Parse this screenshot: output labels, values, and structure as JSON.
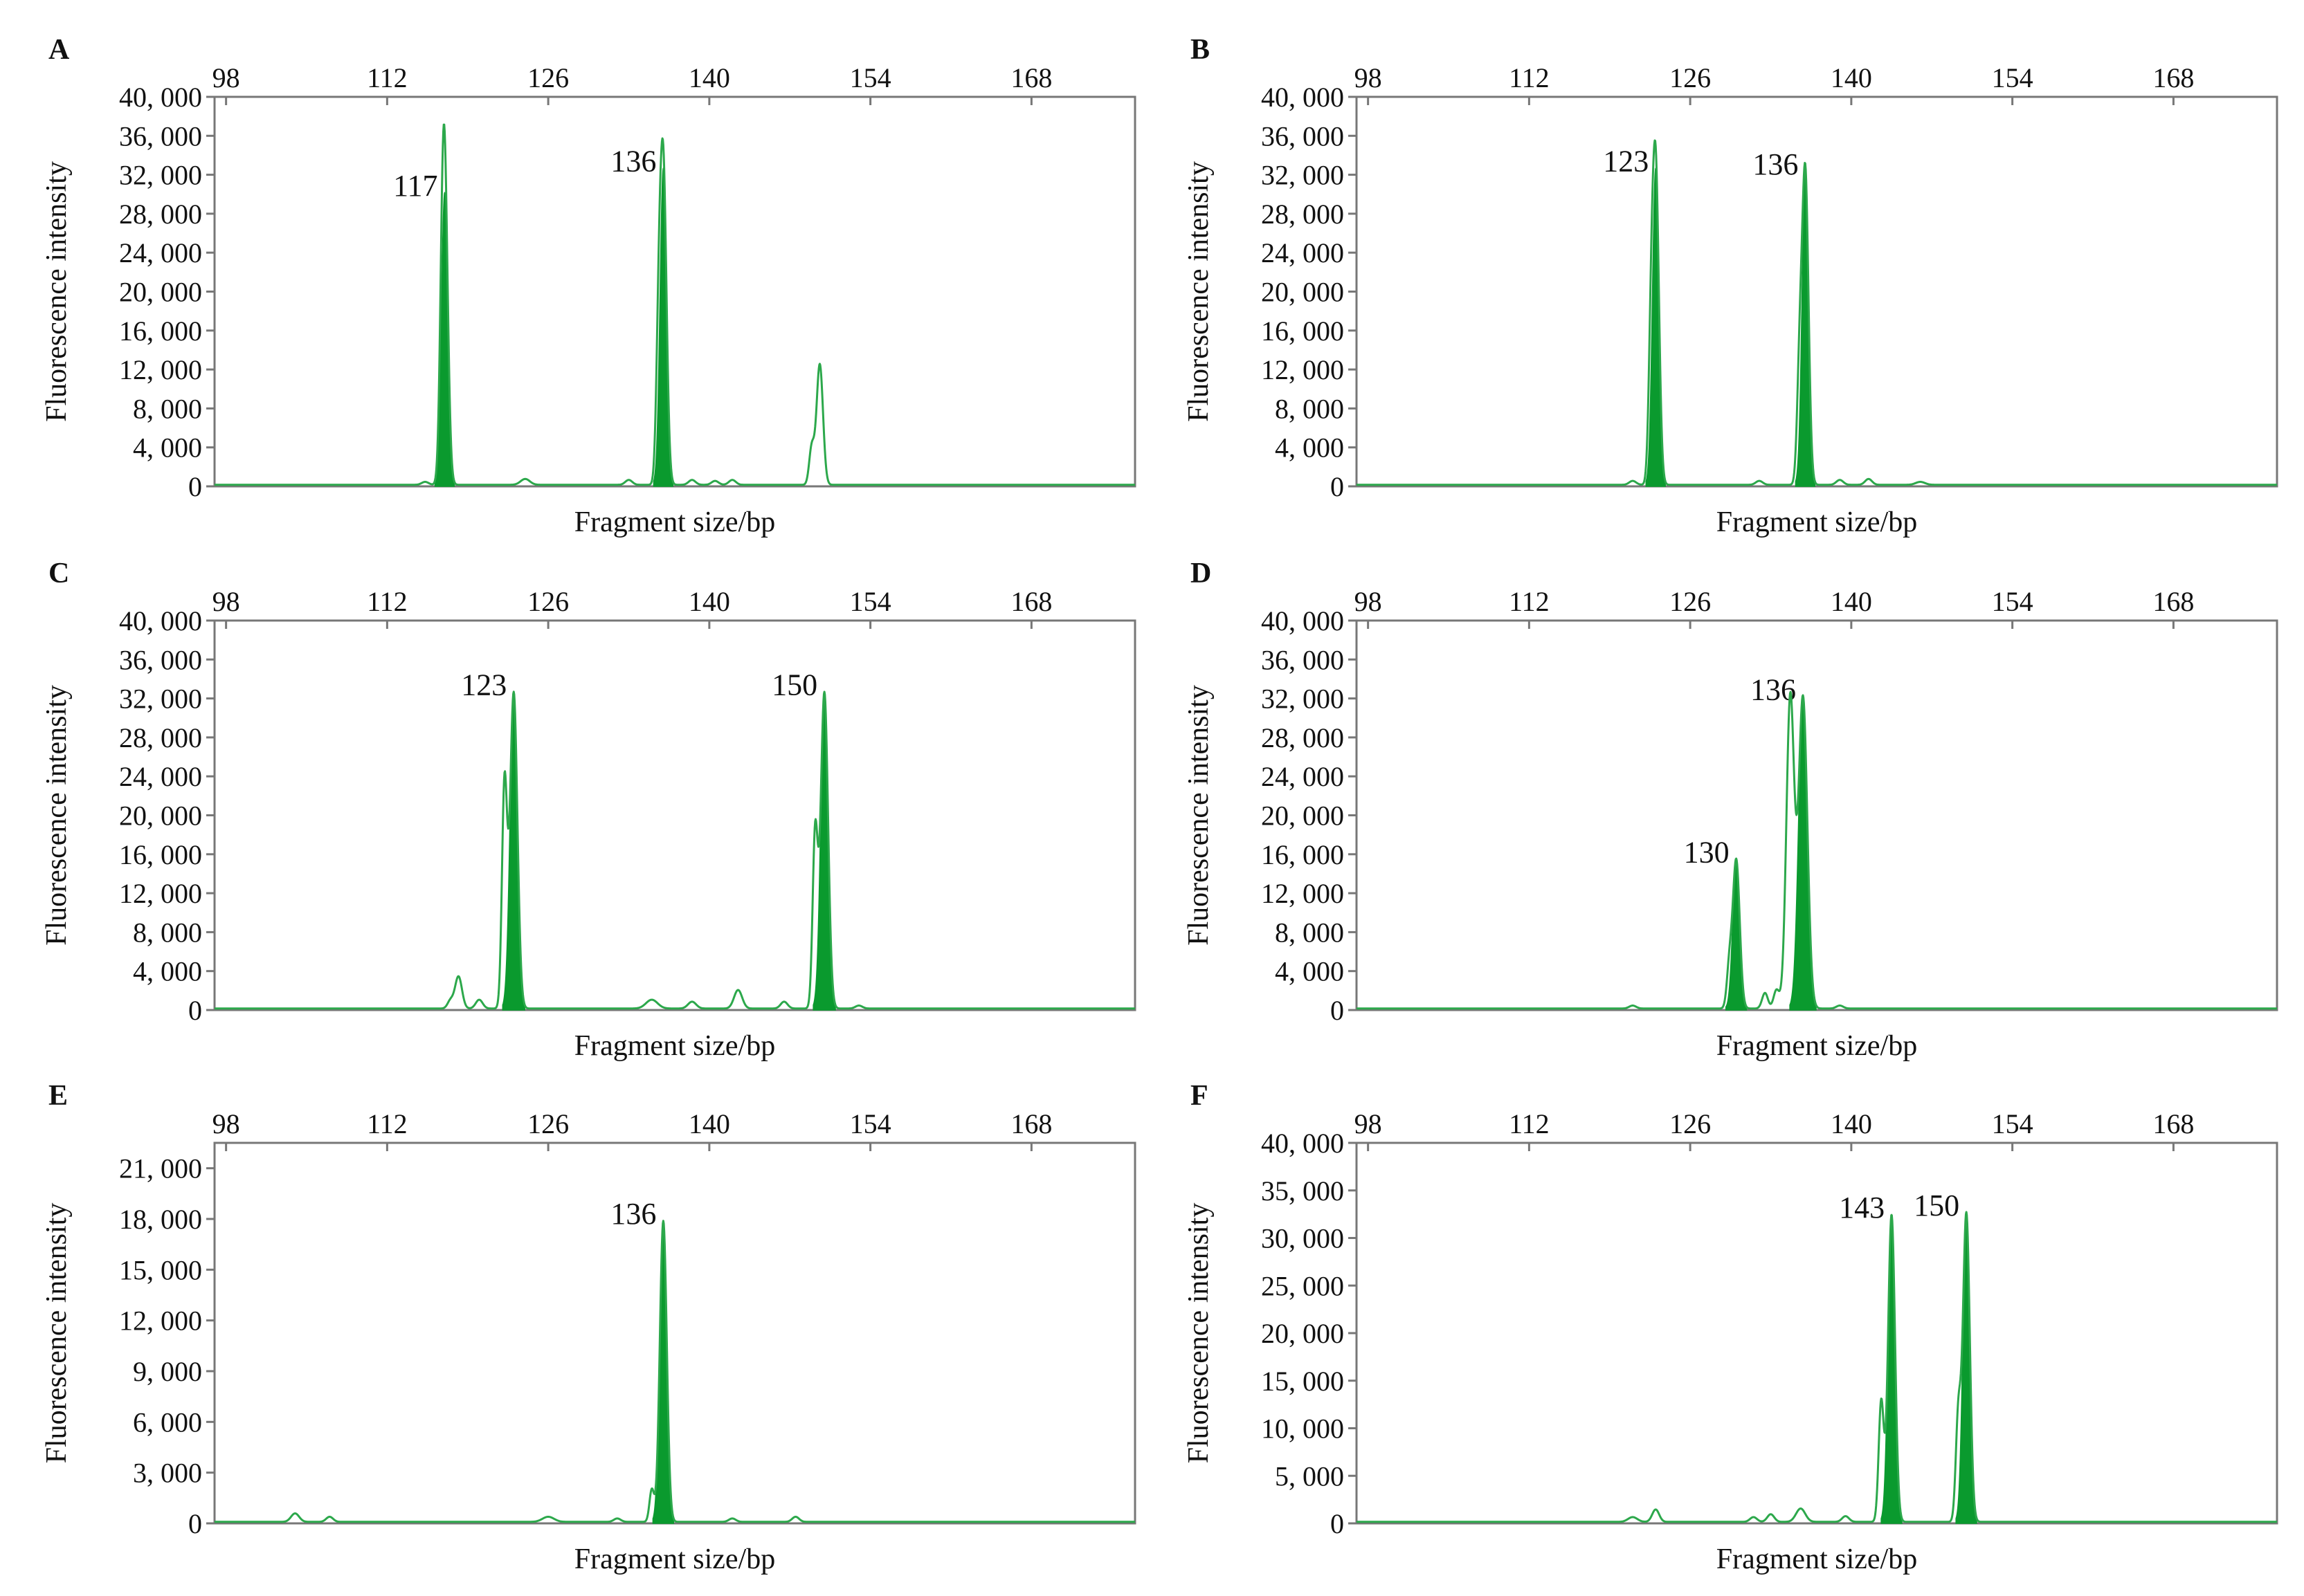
{
  "figure": {
    "xlabel": "Fragment size/bp",
    "ylabel": "Fluorescence intensity",
    "colors": {
      "trace": "#2ca84b",
      "fill": "#0a9a2e",
      "frame": "#777777",
      "text": "#111111"
    }
  },
  "chart_data": [
    {
      "panel": "A",
      "type": "line",
      "xlabel": "Fragment size/bp",
      "ylabel": "Fluorescence intensity",
      "x_ticks": [
        98,
        112,
        126,
        140,
        154,
        168
      ],
      "xlim": [
        97,
        177
      ],
      "y_ticks": [
        0,
        4000,
        8000,
        12000,
        16000,
        20000,
        24000,
        28000,
        32000,
        36000,
        40000
      ],
      "y_tick_labels": [
        "0",
        "4, 000",
        "8, 000",
        "12, 000",
        "16, 000",
        "20, 000",
        "24, 000",
        "28, 000",
        "32, 000",
        "36, 000",
        "40, 000"
      ],
      "ylim": [
        0,
        40000
      ],
      "peaks": [
        {
          "x": 116.8,
          "y": 9500,
          "w": 0.22,
          "filled": false
        },
        {
          "x": 117.0,
          "y": 30000,
          "w": 0.28,
          "filled": true,
          "label": "117"
        },
        {
          "x": 135.6,
          "y": 12600,
          "w": 0.22,
          "filled": false
        },
        {
          "x": 136.0,
          "y": 32500,
          "w": 0.28,
          "filled": true,
          "label": "136"
        },
        {
          "x": 148.9,
          "y": 3800,
          "w": 0.22,
          "filled": false
        },
        {
          "x": 149.6,
          "y": 12400,
          "w": 0.28,
          "filled": false
        },
        {
          "x": 115.3,
          "y": 300,
          "w": 0.3,
          "filled": false
        },
        {
          "x": 124.0,
          "y": 600,
          "w": 0.4,
          "filled": false
        },
        {
          "x": 133.0,
          "y": 500,
          "w": 0.3,
          "filled": false
        },
        {
          "x": 138.5,
          "y": 500,
          "w": 0.3,
          "filled": false
        },
        {
          "x": 140.5,
          "y": 400,
          "w": 0.3,
          "filled": false
        },
        {
          "x": 142.0,
          "y": 500,
          "w": 0.3,
          "filled": false
        }
      ]
    },
    {
      "panel": "B",
      "type": "line",
      "xlabel": "Fragment size/bp",
      "ylabel": "Fluorescence intensity",
      "x_ticks": [
        98,
        112,
        126,
        140,
        154,
        168
      ],
      "xlim": [
        97,
        177
      ],
      "y_ticks": [
        0,
        4000,
        8000,
        12000,
        16000,
        20000,
        24000,
        28000,
        32000,
        36000,
        40000
      ],
      "y_tick_labels": [
        "0",
        "4, 000",
        "8, 000",
        "12, 000",
        "16, 000",
        "20, 000",
        "24, 000",
        "28, 000",
        "32, 000",
        "36, 000",
        "40, 000"
      ],
      "ylim": [
        0,
        40000
      ],
      "peaks": [
        {
          "x": 122.6,
          "y": 12000,
          "w": 0.22,
          "filled": false
        },
        {
          "x": 123.0,
          "y": 32500,
          "w": 0.28,
          "filled": true,
          "label": "123"
        },
        {
          "x": 135.5,
          "y": 10500,
          "w": 0.22,
          "filled": false
        },
        {
          "x": 136.0,
          "y": 32200,
          "w": 0.28,
          "filled": true,
          "label": "136"
        },
        {
          "x": 121.0,
          "y": 400,
          "w": 0.3,
          "filled": false
        },
        {
          "x": 132.0,
          "y": 400,
          "w": 0.3,
          "filled": false
        },
        {
          "x": 139.0,
          "y": 500,
          "w": 0.3,
          "filled": false
        },
        {
          "x": 141.5,
          "y": 600,
          "w": 0.3,
          "filled": false
        },
        {
          "x": 146.0,
          "y": 300,
          "w": 0.4,
          "filled": false
        }
      ]
    },
    {
      "panel": "C",
      "type": "line",
      "xlabel": "Fragment size/bp",
      "ylabel": "Fluorescence intensity",
      "x_ticks": [
        98,
        112,
        126,
        140,
        154,
        168
      ],
      "xlim": [
        97,
        177
      ],
      "y_ticks": [
        0,
        4000,
        8000,
        12000,
        16000,
        20000,
        24000,
        28000,
        32000,
        36000,
        40000
      ],
      "y_tick_labels": [
        "0",
        "4, 000",
        "8, 000",
        "12, 000",
        "16, 000",
        "20, 000",
        "24, 000",
        "28, 000",
        "32, 000",
        "36, 000",
        "40, 000"
      ],
      "ylim": [
        0,
        40000
      ],
      "peaks": [
        {
          "x": 118.2,
          "y": 3300,
          "w": 0.3,
          "filled": false
        },
        {
          "x": 117.5,
          "y": 800,
          "w": 0.25,
          "filled": false
        },
        {
          "x": 120.0,
          "y": 900,
          "w": 0.3,
          "filled": false
        },
        {
          "x": 122.2,
          "y": 22800,
          "w": 0.22,
          "filled": false
        },
        {
          "x": 123.0,
          "y": 32500,
          "w": 0.32,
          "filled": true,
          "label": "123"
        },
        {
          "x": 135.0,
          "y": 900,
          "w": 0.5,
          "filled": false
        },
        {
          "x": 138.5,
          "y": 700,
          "w": 0.35,
          "filled": false
        },
        {
          "x": 142.5,
          "y": 1900,
          "w": 0.35,
          "filled": false
        },
        {
          "x": 146.5,
          "y": 700,
          "w": 0.3,
          "filled": false
        },
        {
          "x": 149.2,
          "y": 17800,
          "w": 0.22,
          "filled": false
        },
        {
          "x": 150.0,
          "y": 32500,
          "w": 0.32,
          "filled": true,
          "label": "150"
        },
        {
          "x": 153.0,
          "y": 300,
          "w": 0.3,
          "filled": false
        }
      ]
    },
    {
      "panel": "D",
      "type": "line",
      "xlabel": "Fragment size/bp",
      "ylabel": "Fluorescence intensity",
      "x_ticks": [
        98,
        112,
        126,
        140,
        154,
        168
      ],
      "xlim": [
        97,
        177
      ],
      "y_ticks": [
        0,
        4000,
        8000,
        12000,
        16000,
        20000,
        24000,
        28000,
        32000,
        36000,
        40000
      ],
      "y_tick_labels": [
        "0",
        "4, 000",
        "8, 000",
        "12, 000",
        "16, 000",
        "20, 000",
        "24, 000",
        "28, 000",
        "32, 000",
        "36, 000",
        "40, 000"
      ],
      "ylim": [
        0,
        40000
      ],
      "peaks": [
        {
          "x": 121.0,
          "y": 300,
          "w": 0.3,
          "filled": false
        },
        {
          "x": 129.4,
          "y": 4000,
          "w": 0.22,
          "filled": false
        },
        {
          "x": 130.0,
          "y": 15300,
          "w": 0.3,
          "filled": true,
          "label": "130"
        },
        {
          "x": 132.5,
          "y": 1600,
          "w": 0.25,
          "filled": false
        },
        {
          "x": 133.5,
          "y": 1900,
          "w": 0.25,
          "filled": false
        },
        {
          "x": 134.7,
          "y": 32000,
          "w": 0.34,
          "filled": false
        },
        {
          "x": 135.8,
          "y": 32000,
          "w": 0.38,
          "filled": true,
          "label": "136"
        },
        {
          "x": 139.0,
          "y": 300,
          "w": 0.3,
          "filled": false
        }
      ]
    },
    {
      "panel": "E",
      "type": "line",
      "xlabel": "Fragment size/bp",
      "ylabel": "Fluorescence intensity",
      "x_ticks": [
        98,
        112,
        126,
        140,
        154,
        168
      ],
      "xlim": [
        97,
        177
      ],
      "y_ticks": [
        0,
        3000,
        6000,
        9000,
        12000,
        15000,
        18000,
        21000
      ],
      "y_tick_labels": [
        "0",
        "3, 000",
        "6, 000",
        "9, 000",
        "12, 000",
        "15, 000",
        "18, 000",
        "21, 000"
      ],
      "ylim": [
        0,
        22500
      ],
      "peaks": [
        {
          "x": 104.0,
          "y": 500,
          "w": 0.35,
          "filled": false
        },
        {
          "x": 107.0,
          "y": 300,
          "w": 0.3,
          "filled": false
        },
        {
          "x": 126.0,
          "y": 300,
          "w": 0.5,
          "filled": false
        },
        {
          "x": 132.0,
          "y": 200,
          "w": 0.3,
          "filled": false
        },
        {
          "x": 135.0,
          "y": 1900,
          "w": 0.2,
          "filled": false
        },
        {
          "x": 136.0,
          "y": 17800,
          "w": 0.3,
          "filled": true,
          "label": "136"
        },
        {
          "x": 142.0,
          "y": 200,
          "w": 0.3,
          "filled": false
        },
        {
          "x": 147.5,
          "y": 300,
          "w": 0.3,
          "filled": false
        }
      ]
    },
    {
      "panel": "F",
      "type": "line",
      "xlabel": "Fragment size/bp",
      "ylabel": "Fluorescence intensity",
      "x_ticks": [
        98,
        112,
        126,
        140,
        154,
        168
      ],
      "xlim": [
        97,
        177
      ],
      "y_ticks": [
        0,
        5000,
        10000,
        15000,
        20000,
        25000,
        30000,
        35000,
        40000
      ],
      "y_tick_labels": [
        "0",
        "5, 000",
        "10, 000",
        "15, 000",
        "20, 000",
        "25, 000",
        "30, 000",
        "35, 000",
        "40, 000"
      ],
      "ylim": [
        0,
        40000
      ],
      "peaks": [
        {
          "x": 121.0,
          "y": 500,
          "w": 0.4,
          "filled": false
        },
        {
          "x": 123.0,
          "y": 1300,
          "w": 0.3,
          "filled": false
        },
        {
          "x": 131.5,
          "y": 500,
          "w": 0.3,
          "filled": false
        },
        {
          "x": 133.0,
          "y": 800,
          "w": 0.3,
          "filled": false
        },
        {
          "x": 135.6,
          "y": 1400,
          "w": 0.4,
          "filled": false
        },
        {
          "x": 139.5,
          "y": 600,
          "w": 0.3,
          "filled": false
        },
        {
          "x": 142.6,
          "y": 12600,
          "w": 0.22,
          "filled": false
        },
        {
          "x": 143.5,
          "y": 32300,
          "w": 0.3,
          "filled": true,
          "label": "143"
        },
        {
          "x": 149.3,
          "y": 10800,
          "w": 0.22,
          "filled": false
        },
        {
          "x": 150.0,
          "y": 32500,
          "w": 0.3,
          "filled": true,
          "label": "150"
        }
      ]
    }
  ]
}
